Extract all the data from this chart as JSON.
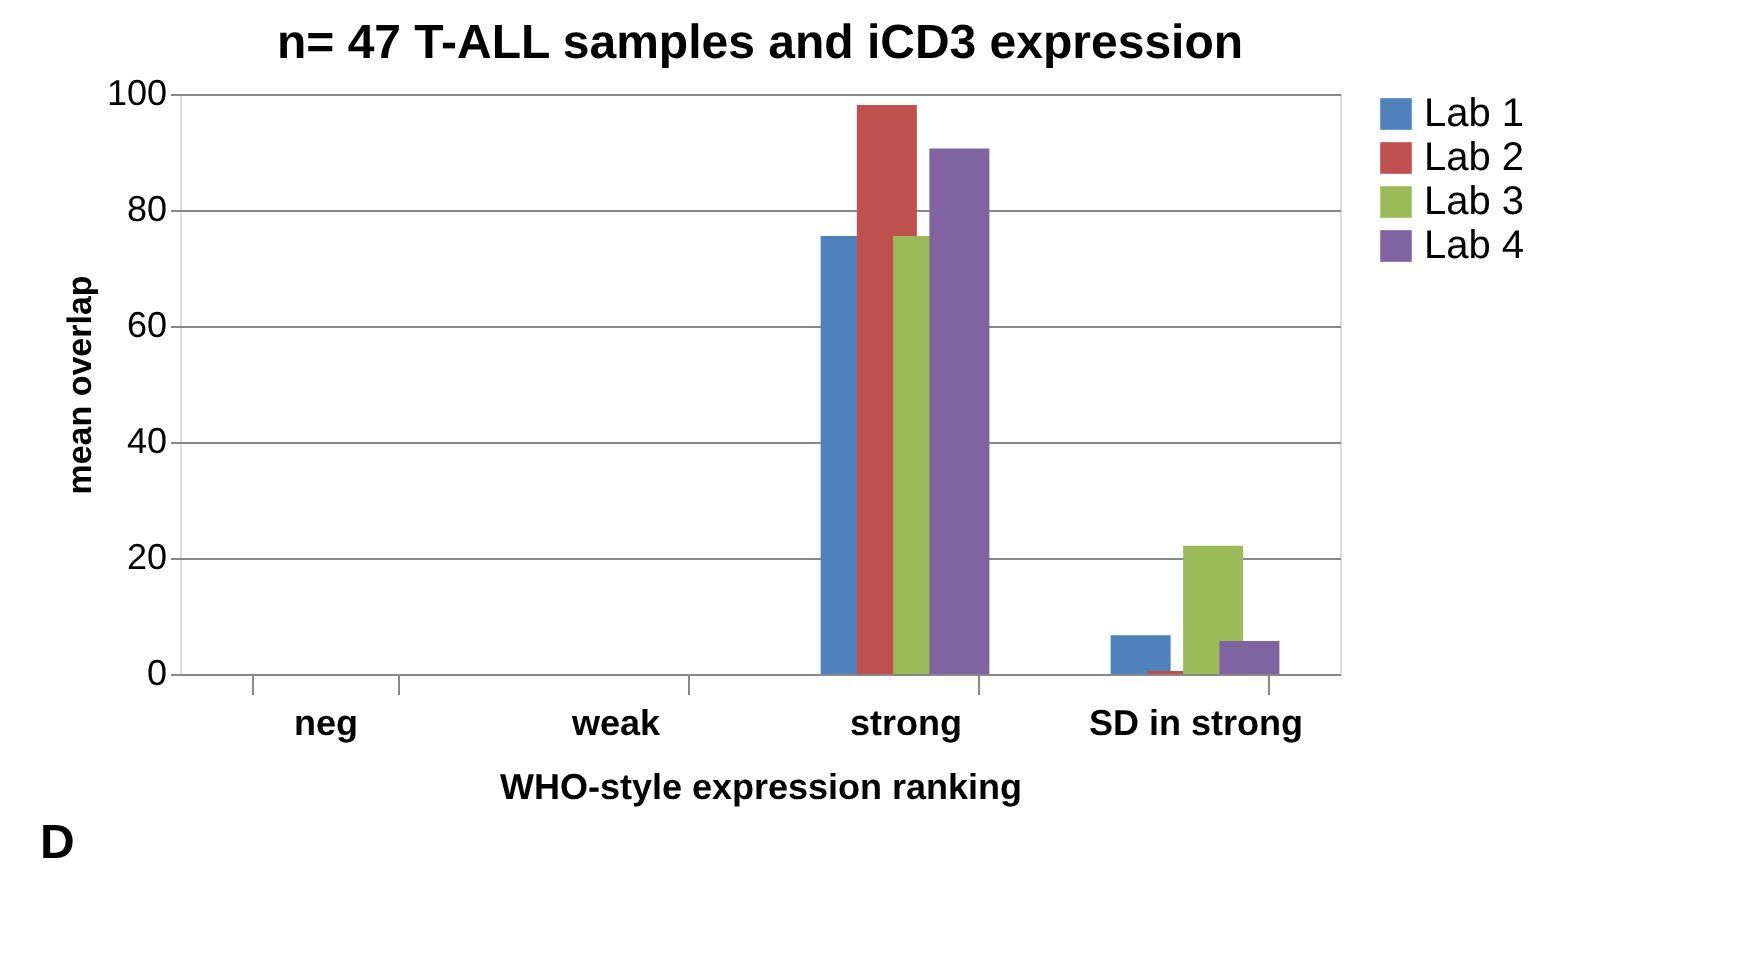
{
  "chart_data": {
    "type": "bar",
    "title": "n= 47 T-ALL samples and iCD3 expression",
    "xlabel": "WHO-style expression ranking",
    "ylabel": "mean overlap",
    "categories": [
      "neg",
      "weak",
      "strong",
      "SD in strong"
    ],
    "series": [
      {
        "name": "Lab 1",
        "color": "#4f81bd",
        "values": [
          0,
          0,
          75.5,
          6.7
        ]
      },
      {
        "name": "Lab 2",
        "color": "#c0504d",
        "values": [
          0,
          0,
          98.1,
          0.5
        ]
      },
      {
        "name": "Lab 3",
        "color": "#9bbb59",
        "values": [
          0,
          0,
          75.5,
          22.1
        ]
      },
      {
        "name": "Lab 4",
        "color": "#8064a2",
        "values": [
          0,
          0,
          90.6,
          5.7
        ]
      }
    ],
    "ylim": [
      0,
      100
    ],
    "yticks": [
      0,
      20,
      40,
      60,
      80,
      100
    ],
    "grid": "y",
    "legend": "right",
    "annotations": [
      "D"
    ]
  }
}
